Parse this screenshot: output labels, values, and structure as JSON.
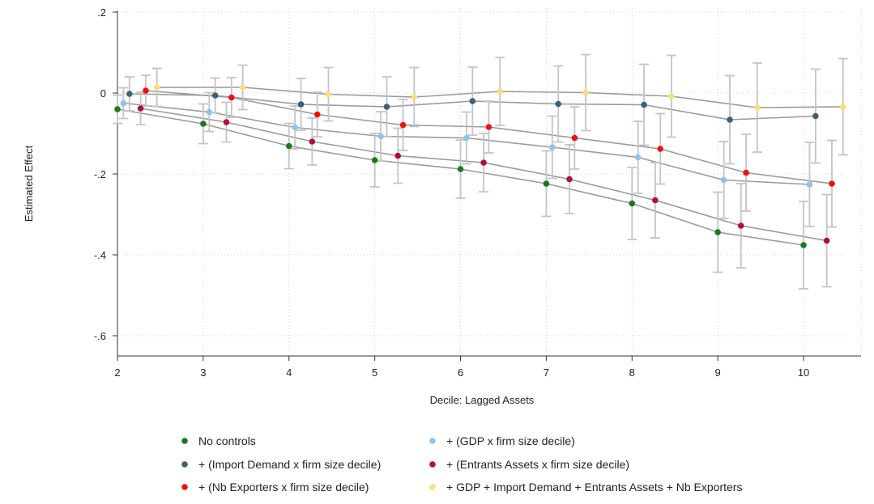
{
  "chart_data": {
    "type": "scatter",
    "xlabel": "Decile: Lagged Assets",
    "ylabel": "Estimated Effect",
    "xlim": [
      2,
      10.5
    ],
    "ylim": [
      -0.65,
      0.2
    ],
    "x_ticks": [
      {
        "value": 2,
        "label": "2"
      },
      {
        "value": 3,
        "label": "3"
      },
      {
        "value": 4,
        "label": "4"
      },
      {
        "value": 5,
        "label": "5"
      },
      {
        "value": 6,
        "label": "6"
      },
      {
        "value": 7,
        "label": "7"
      },
      {
        "value": 8,
        "label": "8"
      },
      {
        "value": 9,
        "label": "9"
      },
      {
        "value": 10,
        "label": "10"
      }
    ],
    "y_ticks": [
      {
        "value": 0.2,
        "label": ".2"
      },
      {
        "value": 0,
        "label": "0"
      },
      {
        "value": -0.2,
        "label": "-.2"
      },
      {
        "value": -0.4,
        "label": "-.4"
      },
      {
        "value": -0.6,
        "label": "-.6"
      }
    ],
    "grid": true,
    "legend_position": "bottom",
    "categories": [
      2,
      3,
      4,
      5,
      6,
      7,
      8,
      9,
      10
    ],
    "series": [
      {
        "name": "No controls",
        "color": "#1a7a1a",
        "x": [
          2.0,
          3.0,
          4.0,
          5.0,
          6.0,
          7.0,
          8.0,
          9.0,
          10.0
        ],
        "y": [
          -0.04,
          -0.076,
          -0.131,
          -0.166,
          -0.188,
          -0.224,
          -0.273,
          -0.344,
          -0.376
        ],
        "ci_low": [
          -0.075,
          -0.125,
          -0.187,
          -0.232,
          -0.26,
          -0.305,
          -0.362,
          -0.443,
          -0.484
        ],
        "ci_high": [
          -0.005,
          -0.027,
          -0.075,
          -0.1,
          -0.116,
          -0.143,
          -0.184,
          -0.245,
          -0.268
        ]
      },
      {
        "name": "+ (GDP x firm size decile)",
        "color": "#8ec4e8",
        "x": [
          2.07,
          3.07,
          4.07,
          5.07,
          6.07,
          7.07,
          8.07,
          9.07,
          10.07
        ],
        "y": [
          -0.025,
          -0.047,
          -0.085,
          -0.107,
          -0.111,
          -0.134,
          -0.159,
          -0.215,
          -0.226
        ],
        "ci_low": [
          -0.063,
          -0.095,
          -0.138,
          -0.168,
          -0.175,
          -0.211,
          -0.248,
          -0.31,
          -0.33
        ],
        "ci_high": [
          0.013,
          0.001,
          -0.032,
          -0.046,
          -0.047,
          -0.057,
          -0.07,
          -0.12,
          -0.122
        ]
      },
      {
        "name": "+ (Import Demand x firm size decile)",
        "color": "#3f5f74",
        "x": [
          2.14,
          3.14,
          4.14,
          5.14,
          6.14,
          7.14,
          8.14,
          9.14,
          10.14
        ],
        "y": [
          -0.002,
          -0.006,
          -0.028,
          -0.034,
          -0.02,
          -0.027,
          -0.029,
          -0.066,
          -0.057
        ],
        "ci_low": [
          -0.044,
          -0.049,
          -0.092,
          -0.108,
          -0.104,
          -0.121,
          -0.129,
          -0.175,
          -0.173
        ],
        "ci_high": [
          0.04,
          0.037,
          0.036,
          0.04,
          0.064,
          0.067,
          0.071,
          0.043,
          0.059
        ]
      },
      {
        "name": "+ (Entrants Assets x firm size decile)",
        "color": "#b0103a",
        "x": [
          2.27,
          3.27,
          4.27,
          5.27,
          6.27,
          7.27,
          8.27,
          9.27,
          10.27
        ],
        "y": [
          -0.038,
          -0.072,
          -0.12,
          -0.155,
          -0.172,
          -0.213,
          -0.265,
          -0.328,
          -0.365
        ],
        "ci_low": [
          -0.078,
          -0.121,
          -0.178,
          -0.223,
          -0.244,
          -0.298,
          -0.358,
          -0.432,
          -0.479
        ],
        "ci_high": [
          0.002,
          -0.023,
          -0.062,
          -0.087,
          -0.1,
          -0.128,
          -0.172,
          -0.224,
          -0.251
        ]
      },
      {
        "name": "+ (Nb Exporters x firm size decile)",
        "color": "#ee1111",
        "x": [
          2.33,
          3.33,
          4.33,
          5.33,
          6.33,
          7.33,
          8.33,
          9.33,
          10.33
        ],
        "y": [
          0.006,
          -0.011,
          -0.053,
          -0.079,
          -0.084,
          -0.111,
          -0.138,
          -0.197,
          -0.224
        ],
        "ci_low": [
          -0.032,
          -0.06,
          -0.108,
          -0.142,
          -0.148,
          -0.188,
          -0.225,
          -0.292,
          -0.331
        ],
        "ci_high": [
          0.044,
          0.038,
          0.002,
          -0.016,
          -0.02,
          -0.034,
          -0.051,
          -0.102,
          -0.117
        ]
      },
      {
        "name": "+ GDP + Import Demand + Entrants Assets + Nb Exporters",
        "color": "#f7e07a",
        "x": [
          2.46,
          3.46,
          4.46,
          5.46,
          6.46,
          7.46,
          8.46,
          9.46,
          10.46
        ],
        "y": [
          0.014,
          0.014,
          -0.003,
          -0.01,
          0.004,
          0.001,
          -0.008,
          -0.036,
          -0.034
        ],
        "ci_low": [
          -0.033,
          -0.041,
          -0.069,
          -0.083,
          -0.08,
          -0.093,
          -0.109,
          -0.146,
          -0.153
        ],
        "ci_high": [
          0.061,
          0.069,
          0.063,
          0.063,
          0.088,
          0.095,
          0.093,
          0.074,
          0.085
        ]
      }
    ],
    "legend": [
      {
        "name": "No controls",
        "color": "#1a7a1a"
      },
      {
        "name": "+ (GDP x firm size decile)",
        "color": "#8ec4e8"
      },
      {
        "name": "+ (Import Demand x firm size decile)",
        "color": "#3f5f74"
      },
      {
        "name": "+ (Entrants Assets x firm size decile)",
        "color": "#b0103a"
      },
      {
        "name": "+ (Nb Exporters x firm size decile)",
        "color": "#ee1111"
      },
      {
        "name": "+ GDP + Import Demand + Entrants Assets + Nb Exporters",
        "color": "#f7e07a"
      }
    ]
  }
}
